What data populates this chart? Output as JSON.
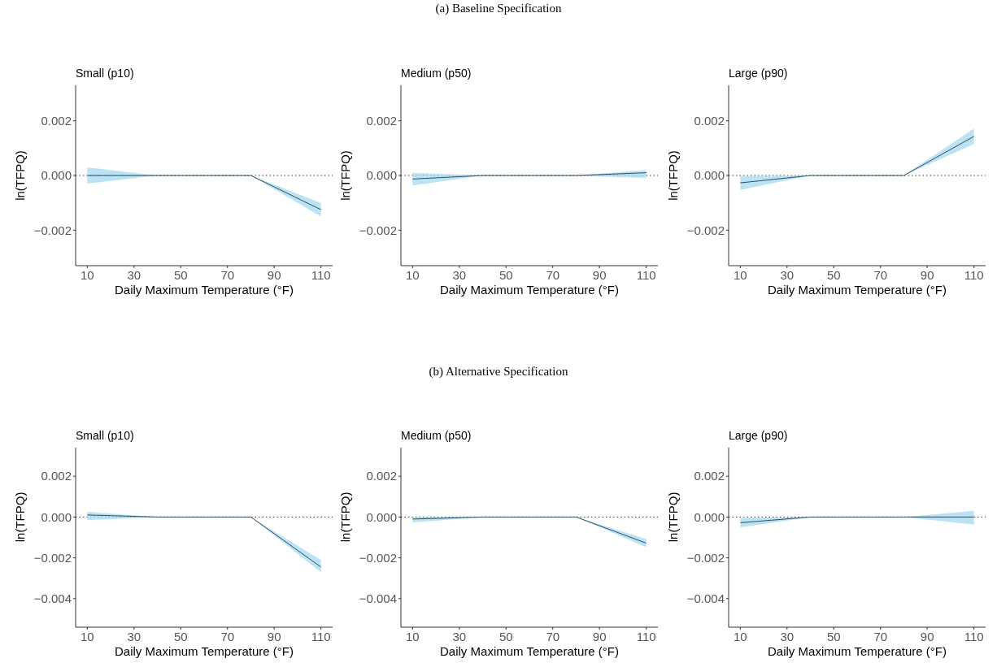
{
  "chart_data": [
    {
      "type": "line",
      "title": "Small (p10)",
      "annotations": [
        "(a) Baseline Specification"
      ],
      "xlabel": "Daily Maximum Temperature (°F)",
      "ylabel": "ln(TFPQ)",
      "x": [
        10,
        40,
        80,
        110
      ],
      "xlim": [
        5,
        115
      ],
      "xticks": [
        10,
        30,
        50,
        70,
        90,
        110
      ],
      "ylim": [
        -0.0033,
        0.0033
      ],
      "yticks": [
        {
          "value": -0.002,
          "label": "−0.002"
        },
        {
          "value": 0,
          "label": "0.000"
        },
        {
          "value": 0.002,
          "label": "0.002"
        }
      ],
      "ref_lines": [
        {
          "axis": "y",
          "value": 0,
          "line_style": "dotted",
          "color": "#333333"
        }
      ],
      "series": [
        {
          "color": "#2f4f5f",
          "values": [
            0,
            0,
            0,
            -0.00125
          ],
          "lower": [
            -0.0003,
            0,
            0,
            -0.0015
          ],
          "upper": [
            0.0003,
            0,
            0,
            -0.001
          ]
        }
      ]
    },
    {
      "type": "line",
      "title": "Medium (p50)",
      "xlabel": "Daily Maximum Temperature (°F)",
      "ylabel": "ln(TFPQ)",
      "x": [
        10,
        40,
        80,
        110
      ],
      "xlim": [
        5,
        115
      ],
      "xticks": [
        10,
        30,
        50,
        70,
        90,
        110
      ],
      "ylim": [
        -0.0033,
        0.0033
      ],
      "yticks": [
        {
          "value": -0.002,
          "label": "−0.002"
        },
        {
          "value": 0,
          "label": "0.000"
        },
        {
          "value": 0.002,
          "label": "0.002"
        }
      ],
      "ref_lines": [
        {
          "axis": "y",
          "value": 0,
          "line_style": "dotted",
          "color": "#333333"
        }
      ],
      "series": [
        {
          "color": "#2f4f5f",
          "values": [
            -0.00013,
            0,
            0,
            0.0001
          ],
          "lower": [
            -0.00037,
            0,
            0,
            -0.0001
          ],
          "upper": [
            0.0001,
            0,
            0,
            0.0002
          ]
        }
      ]
    },
    {
      "type": "line",
      "title": "Large (p90)",
      "xlabel": "Daily Maximum Temperature (°F)",
      "ylabel": "ln(TFPQ)",
      "x": [
        10,
        40,
        80,
        110
      ],
      "xlim": [
        5,
        115
      ],
      "xticks": [
        10,
        30,
        50,
        70,
        90,
        110
      ],
      "ylim": [
        -0.0033,
        0.0033
      ],
      "yticks": [
        {
          "value": -0.002,
          "label": "−0.002"
        },
        {
          "value": 0,
          "label": "0.000"
        },
        {
          "value": 0.002,
          "label": "0.002"
        }
      ],
      "ref_lines": [
        {
          "axis": "y",
          "value": 0,
          "line_style": "dotted",
          "color": "#333333"
        }
      ],
      "series": [
        {
          "color": "#2f4f5f",
          "values": [
            -0.00027,
            0,
            0,
            0.00143
          ],
          "lower": [
            -0.00053,
            0,
            0,
            0.00115
          ],
          "upper": [
            -2e-05,
            0,
            0,
            0.00172
          ]
        }
      ]
    },
    {
      "type": "line",
      "title": "Small (p10)",
      "annotations": [
        "(b) Alternative Specification"
      ],
      "xlabel": "Daily Maximum Temperature (°F)",
      "ylabel": "ln(TFPQ)",
      "x": [
        10,
        40,
        80,
        110
      ],
      "xlim": [
        5,
        115
      ],
      "xticks": [
        10,
        30,
        50,
        70,
        90,
        110
      ],
      "ylim": [
        -0.0054,
        0.0034
      ],
      "yticks": [
        {
          "value": -0.004,
          "label": "−0.004"
        },
        {
          "value": -0.002,
          "label": "−0.002"
        },
        {
          "value": 0,
          "label": "0.000"
        },
        {
          "value": 0.002,
          "label": "0.002"
        }
      ],
      "ref_lines": [
        {
          "axis": "y",
          "value": 0,
          "line_style": "dotted",
          "color": "#333333"
        }
      ],
      "series": [
        {
          "color": "#2f4f5f",
          "values": [
            0.0001,
            0,
            0,
            -0.00245
          ],
          "lower": [
            -0.00015,
            0,
            0,
            -0.0027
          ],
          "upper": [
            0.00025,
            0,
            0,
            -0.0021
          ]
        }
      ]
    },
    {
      "type": "line",
      "title": "Medium (p50)",
      "xlabel": "Daily Maximum Temperature (°F)",
      "ylabel": "ln(TFPQ)",
      "x": [
        10,
        40,
        80,
        110
      ],
      "xlim": [
        5,
        115
      ],
      "xticks": [
        10,
        30,
        50,
        70,
        90,
        110
      ],
      "ylim": [
        -0.0054,
        0.0034
      ],
      "yticks": [
        {
          "value": -0.004,
          "label": "−0.004"
        },
        {
          "value": -0.002,
          "label": "−0.002"
        },
        {
          "value": 0,
          "label": "0.000"
        },
        {
          "value": 0.002,
          "label": "0.002"
        }
      ],
      "ref_lines": [
        {
          "axis": "y",
          "value": 0,
          "line_style": "dotted",
          "color": "#333333"
        }
      ],
      "series": [
        {
          "color": "#2f4f5f",
          "values": [
            -0.0001,
            0,
            0,
            -0.00128
          ],
          "lower": [
            -0.00027,
            0,
            0,
            -0.00148
          ],
          "upper": [
            0,
            0,
            0,
            -0.00108
          ]
        }
      ]
    },
    {
      "type": "line",
      "title": "Large (p90)",
      "xlabel": "Daily Maximum Temperature (°F)",
      "ylabel": "ln(TFPQ)",
      "x": [
        10,
        40,
        80,
        110
      ],
      "xlim": [
        5,
        115
      ],
      "xticks": [
        10,
        30,
        50,
        70,
        90,
        110
      ],
      "ylim": [
        -0.0054,
        0.0034
      ],
      "yticks": [
        {
          "value": -0.004,
          "label": "−0.004"
        },
        {
          "value": -0.002,
          "label": "−0.002"
        },
        {
          "value": 0,
          "label": "0.000"
        },
        {
          "value": 0.002,
          "label": "0.002"
        }
      ],
      "ref_lines": [
        {
          "axis": "y",
          "value": 0,
          "line_style": "dotted",
          "color": "#333333"
        }
      ],
      "series": [
        {
          "color": "#2f4f5f",
          "values": [
            -0.00028,
            0,
            0,
            0
          ],
          "lower": [
            -0.00051,
            0,
            0,
            -0.00037
          ],
          "upper": [
            -5e-05,
            0,
            0,
            0.0003
          ]
        }
      ]
    }
  ]
}
